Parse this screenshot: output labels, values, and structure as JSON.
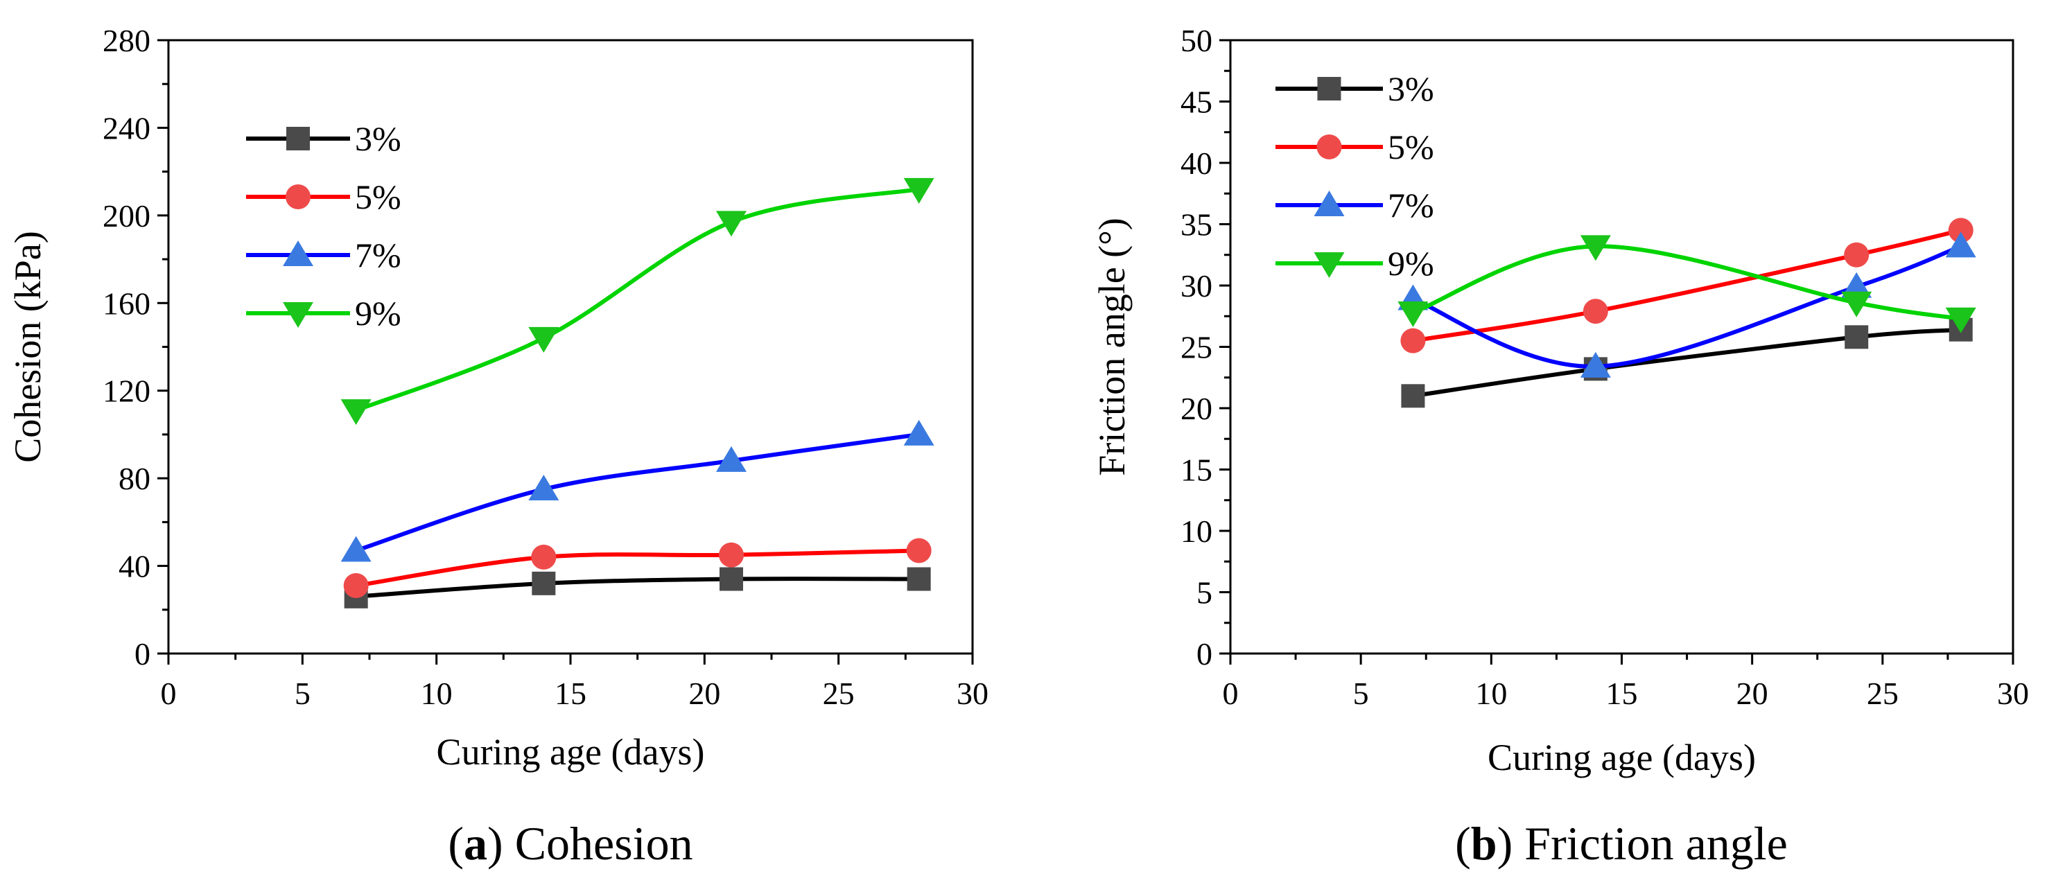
{
  "chart_data": [
    {
      "type": "line",
      "panel": "a",
      "caption": {
        "open": "(",
        "letter": "a",
        "close": ")",
        "text": " Cohesion"
      },
      "xlabel": "Curing age (days)",
      "ylabel": "Cohesion (kPa)",
      "xlim": [
        0,
        30
      ],
      "ylim": [
        0,
        280
      ],
      "xticks": [
        0,
        5,
        10,
        15,
        20,
        25,
        30
      ],
      "yticks": [
        0,
        40,
        80,
        120,
        160,
        200,
        240,
        280
      ],
      "legend_position": "top-left",
      "series": [
        {
          "name": "3%",
          "marker": "square",
          "x": [
            7,
            14,
            21,
            28
          ],
          "values": [
            26,
            32,
            34,
            34
          ]
        },
        {
          "name": "5%",
          "marker": "circle",
          "x": [
            7,
            14,
            21,
            28
          ],
          "values": [
            31,
            44,
            45,
            47
          ]
        },
        {
          "name": "7%",
          "marker": "triangle-up",
          "x": [
            7,
            14,
            21,
            28
          ],
          "values": [
            47,
            75,
            88,
            100
          ]
        },
        {
          "name": "9%",
          "marker": "triangle-down",
          "x": [
            7,
            14,
            21,
            28
          ],
          "values": [
            111,
            144,
            197,
            212
          ]
        }
      ]
    },
    {
      "type": "line",
      "panel": "b",
      "caption": {
        "open": "(",
        "letter": "b",
        "close": ")",
        "text": " Friction angle"
      },
      "xlabel": "Curing age (days)",
      "ylabel": "Friction angle (°)",
      "xlim": [
        0,
        30
      ],
      "ylim": [
        0,
        50
      ],
      "xticks": [
        0,
        5,
        10,
        15,
        20,
        25,
        30
      ],
      "yticks": [
        0,
        5,
        10,
        15,
        20,
        25,
        30,
        35,
        40,
        45,
        50
      ],
      "legend_position": "top-left",
      "series": [
        {
          "name": "3%",
          "marker": "square",
          "x": [
            7,
            14,
            24,
            28
          ],
          "values": [
            21,
            23.2,
            25.8,
            26.4
          ]
        },
        {
          "name": "5%",
          "marker": "circle",
          "x": [
            7,
            14,
            24,
            28
          ],
          "values": [
            25.5,
            27.9,
            32.5,
            34.5
          ]
        },
        {
          "name": "7%",
          "marker": "triangle-up",
          "x": [
            7,
            14,
            24,
            28
          ],
          "values": [
            28.9,
            23.4,
            29.9,
            33.2
          ]
        },
        {
          "name": "9%",
          "marker": "triangle-down",
          "x": [
            7,
            14,
            24,
            28
          ],
          "values": [
            27.8,
            33.2,
            28.6,
            27.3
          ]
        }
      ]
    }
  ],
  "colors": {
    "3%": {
      "line": "#000000",
      "marker": "#4a4a4a"
    },
    "5%": {
      "line": "#ff0000",
      "marker": "#ef4a4a"
    },
    "7%": {
      "line": "#0000ff",
      "marker": "#3a7ae0"
    },
    "9%": {
      "line": "#00d400",
      "marker": "#1ac41a"
    }
  }
}
